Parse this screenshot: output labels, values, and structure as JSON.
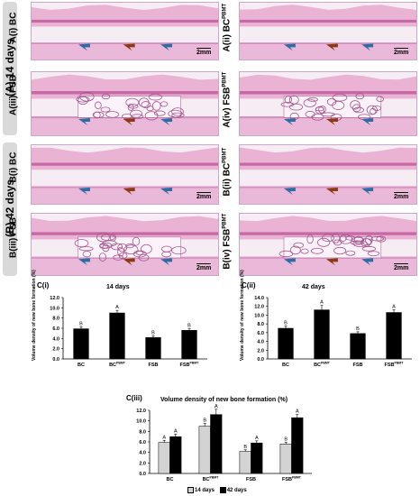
{
  "groups": [
    {
      "label": "(A) 14 days"
    },
    {
      "label": "(B) 42 days"
    }
  ],
  "panels": [
    {
      "label": "A(i) BC",
      "scale": "2mm",
      "has_graft": false
    },
    {
      "label": "A(ii) BC",
      "sup": "PBMT",
      "scale": "2mm",
      "has_graft": false
    },
    {
      "label": "A(iii) FSB",
      "scale": "",
      "has_graft": true
    },
    {
      "label": "A(iv) FSB",
      "sup": "PBMT",
      "scale": "",
      "has_graft": true
    },
    {
      "label": "B(i) BC",
      "scale": "2mm",
      "has_graft": false
    },
    {
      "label": "B(ii) BC",
      "sup": "PBMT",
      "scale": "2mm",
      "has_graft": false
    },
    {
      "label": "B(iii) FSB",
      "scale": "2mm",
      "has_graft": true
    },
    {
      "label": "B(iv) FSB",
      "sup": "PBMT",
      "scale": "2mm",
      "has_graft": true
    }
  ],
  "colors": {
    "bar_dark": "#000000",
    "bar_light": "#d3d3d3",
    "sidebar": "#d9d9d9",
    "tissue": "#e7a9cd",
    "arrow_blue": "#2e6da4",
    "arrow_brown": "#8b3b12"
  },
  "chart_data": [
    {
      "id": "C(i)",
      "type": "bar",
      "title": "14 days",
      "ylabel": "Volume density of new bone formation (%)",
      "ylim": [
        0,
        12
      ],
      "yticks": [
        "0.0",
        "2.0",
        "4.0",
        "6.0",
        "8.0",
        "10.0",
        "12.0"
      ],
      "categories": [
        "BC",
        "BC",
        "FSB",
        "FSB"
      ],
      "category_sups": [
        "",
        "PBMT",
        "",
        "PBMT"
      ],
      "values": [
        5.9,
        9.0,
        4.2,
        5.6
      ],
      "errors": [
        0.4,
        0.5,
        0.3,
        0.3
      ],
      "letters": [
        "B",
        "A",
        "B",
        "B"
      ]
    },
    {
      "id": "C(ii)",
      "type": "bar",
      "title": "42 days",
      "ylabel": "Volume density of new bone formation (%)",
      "ylim": [
        0,
        14
      ],
      "yticks": [
        "0.0",
        "2.0",
        "4.0",
        "6.0",
        "8.0",
        "10.0",
        "12.0",
        "14.0"
      ],
      "categories": [
        "BC",
        "BC",
        "FSB",
        "FSB"
      ],
      "category_sups": [
        "",
        "PBMT",
        "",
        "PBMT"
      ],
      "values": [
        7.0,
        11.2,
        5.8,
        10.6
      ],
      "errors": [
        0.5,
        1.0,
        0.4,
        0.6
      ],
      "letters": [
        "B",
        "A",
        "B",
        "A"
      ]
    },
    {
      "id": "C(iii)",
      "type": "bar",
      "title": "Volume density of new bone formation (%)",
      "ylim": [
        0,
        12
      ],
      "yticks": [
        "0.0",
        "2.0",
        "4.0",
        "6.0",
        "8.0",
        "10.0",
        "12.0"
      ],
      "categories": [
        "BC",
        "BC",
        "FSB",
        "FSB"
      ],
      "category_sups": [
        "",
        "PBMT",
        "",
        "PBMT"
      ],
      "series": [
        {
          "name": "14 days",
          "values": [
            5.9,
            9.0,
            4.2,
            5.6
          ],
          "errors": [
            0.4,
            0.5,
            0.3,
            0.3
          ],
          "letters": [
            "A",
            "B",
            "B",
            "B"
          ]
        },
        {
          "name": "42 days",
          "values": [
            7.0,
            11.2,
            5.8,
            10.6
          ],
          "errors": [
            0.5,
            1.0,
            0.4,
            0.6
          ],
          "letters": [
            "A",
            "A",
            "A",
            "A"
          ]
        }
      ],
      "legend": [
        "14 days",
        "42 days"
      ]
    }
  ]
}
